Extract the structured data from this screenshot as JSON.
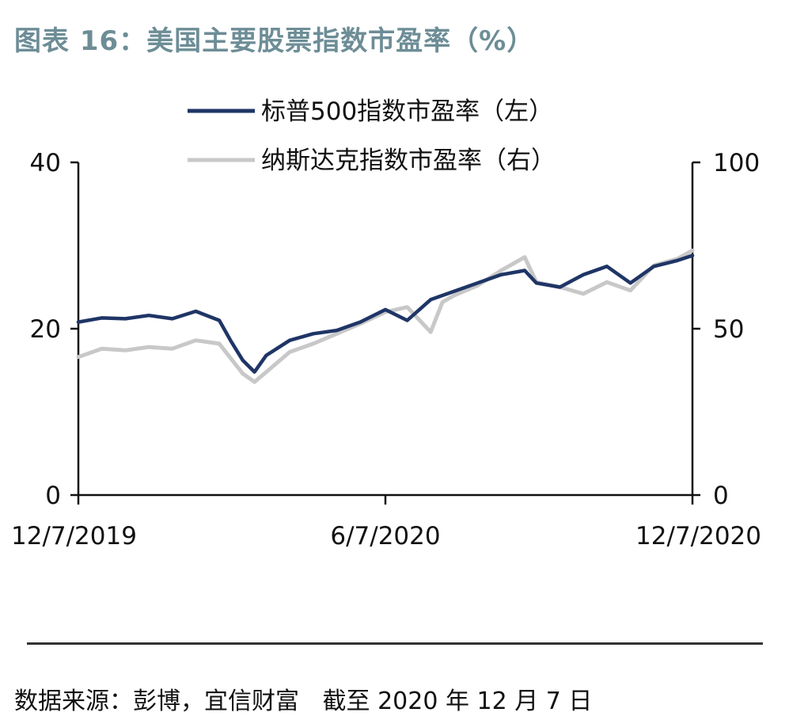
{
  "title": "图表 16：美国主要股票指数市盈率（%）",
  "source_text": "数据来源：彭博，宜信财富",
  "as_of_text": "截至 2020 年 12 月 7 日",
  "chart_data": {
    "type": "line",
    "x_ticks": [
      "12/7/2019",
      "6/7/2020",
      "12/7/2020"
    ],
    "y_left_ticks": [
      "0",
      "20",
      "40"
    ],
    "y_right_ticks": [
      "0",
      "50",
      "100"
    ],
    "y_left_range": [
      0,
      40
    ],
    "y_right_range": [
      0,
      100
    ],
    "legend_position": "top",
    "x": [
      "2019-12-07",
      "2019-12-21",
      "2020-01-04",
      "2020-01-18",
      "2020-02-01",
      "2020-02-15",
      "2020-02-29",
      "2020-03-07",
      "2020-03-14",
      "2020-03-21",
      "2020-03-28",
      "2020-04-11",
      "2020-04-25",
      "2020-05-09",
      "2020-05-23",
      "2020-06-07",
      "2020-06-20",
      "2020-07-04",
      "2020-07-11",
      "2020-07-18",
      "2020-08-01",
      "2020-08-15",
      "2020-08-29",
      "2020-09-05",
      "2020-09-19",
      "2020-10-03",
      "2020-10-17",
      "2020-10-31",
      "2020-11-14",
      "2020-11-28",
      "2020-12-07"
    ],
    "series": [
      {
        "name": "标普500指数市盈率（左）",
        "axis": "left",
        "color": "#1f3566",
        "values": [
          20.8,
          21.3,
          21.2,
          21.6,
          21.2,
          22.1,
          21.0,
          18.5,
          16.2,
          14.8,
          16.8,
          18.6,
          19.4,
          19.8,
          20.8,
          22.3,
          21.0,
          23.5,
          24.0,
          24.5,
          25.5,
          26.5,
          27.0,
          25.5,
          25.0,
          26.5,
          27.5,
          25.5,
          27.5,
          28.2,
          28.8
        ]
      },
      {
        "name": "纳斯达克指数市盈率（右）",
        "axis": "right",
        "color": "#c8c8c8",
        "values": [
          41.5,
          44.0,
          43.5,
          44.5,
          44.0,
          46.5,
          45.5,
          41.0,
          36.5,
          34.0,
          37.0,
          43.0,
          45.5,
          48.5,
          51.5,
          55.0,
          56.5,
          49.0,
          58.0,
          60.0,
          63.0,
          67.5,
          71.5,
          64.0,
          62.5,
          60.5,
          64.0,
          61.5,
          69.0,
          71.0,
          73.5
        ]
      }
    ]
  }
}
